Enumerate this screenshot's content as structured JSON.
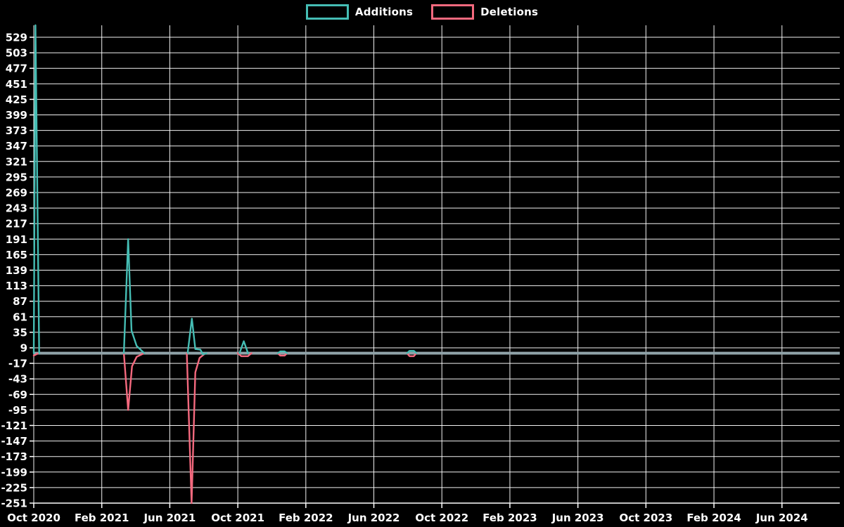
{
  "chart_data": {
    "type": "line",
    "title": "",
    "legend_position": "top-center",
    "background_color": "#000000",
    "grid": true,
    "grid_color": "#ffffff",
    "axis_text_color": "#ffffff",
    "zero_line_color": "#8fa2a8",
    "x_unit": "months since Oct 2020",
    "x_range": [
      0,
      47.4
    ],
    "y_range": [
      -251,
      549
    ],
    "x_ticks": [
      {
        "label": "Oct 2020",
        "m": 0
      },
      {
        "label": "Feb 2021",
        "m": 4
      },
      {
        "label": "Jun 2021",
        "m": 8
      },
      {
        "label": "Oct 2021",
        "m": 12
      },
      {
        "label": "Feb 2022",
        "m": 16
      },
      {
        "label": "Jun 2022",
        "m": 20
      },
      {
        "label": "Oct 2022",
        "m": 24
      },
      {
        "label": "Feb 2023",
        "m": 28
      },
      {
        "label": "Jun 2023",
        "m": 32
      },
      {
        "label": "Oct 2023",
        "m": 36
      },
      {
        "label": "Feb 2024",
        "m": 40
      },
      {
        "label": "Jun 2024",
        "m": 44
      }
    ],
    "y_ticks": [
      529,
      503,
      477,
      451,
      425,
      399,
      373,
      347,
      321,
      295,
      269,
      243,
      217,
      191,
      165,
      139,
      113,
      87,
      61,
      35,
      9,
      -17,
      -43,
      -69,
      -95,
      -121,
      -147,
      -173,
      -199,
      -225,
      -251
    ],
    "series": [
      {
        "name": "Additions",
        "color": "#45bdb4",
        "points": [
          [
            0.0,
            0
          ],
          [
            0.1,
            549
          ],
          [
            0.32,
            0
          ],
          [
            5.3,
            0
          ],
          [
            5.55,
            191
          ],
          [
            5.75,
            38
          ],
          [
            6.05,
            12
          ],
          [
            6.5,
            0
          ],
          [
            9.05,
            0
          ],
          [
            9.3,
            58
          ],
          [
            9.5,
            7
          ],
          [
            9.8,
            6
          ],
          [
            9.95,
            -2
          ],
          [
            10.15,
            0
          ],
          [
            12.1,
            0
          ],
          [
            12.35,
            20
          ],
          [
            12.6,
            0
          ],
          [
            14.35,
            0
          ],
          [
            14.5,
            3
          ],
          [
            14.75,
            3
          ],
          [
            14.9,
            0
          ],
          [
            21.95,
            0
          ],
          [
            22.1,
            4
          ],
          [
            22.35,
            4
          ],
          [
            22.5,
            0
          ],
          [
            47.4,
            0
          ]
        ]
      },
      {
        "name": "Deletions",
        "color": "#f4697e",
        "points": [
          [
            0.0,
            -4
          ],
          [
            0.28,
            0
          ],
          [
            5.3,
            0
          ],
          [
            5.55,
            -95
          ],
          [
            5.78,
            -22
          ],
          [
            6.05,
            -6
          ],
          [
            6.5,
            0
          ],
          [
            9.0,
            0
          ],
          [
            9.28,
            -251
          ],
          [
            9.5,
            -32
          ],
          [
            9.75,
            -8
          ],
          [
            10.1,
            0
          ],
          [
            12.0,
            0
          ],
          [
            12.2,
            -5
          ],
          [
            12.6,
            -5
          ],
          [
            12.8,
            0
          ],
          [
            14.35,
            0
          ],
          [
            14.5,
            -4
          ],
          [
            14.75,
            -4
          ],
          [
            14.9,
            0
          ],
          [
            21.95,
            0
          ],
          [
            22.1,
            -5
          ],
          [
            22.35,
            -5
          ],
          [
            22.5,
            0
          ],
          [
            47.4,
            0
          ]
        ]
      }
    ]
  }
}
